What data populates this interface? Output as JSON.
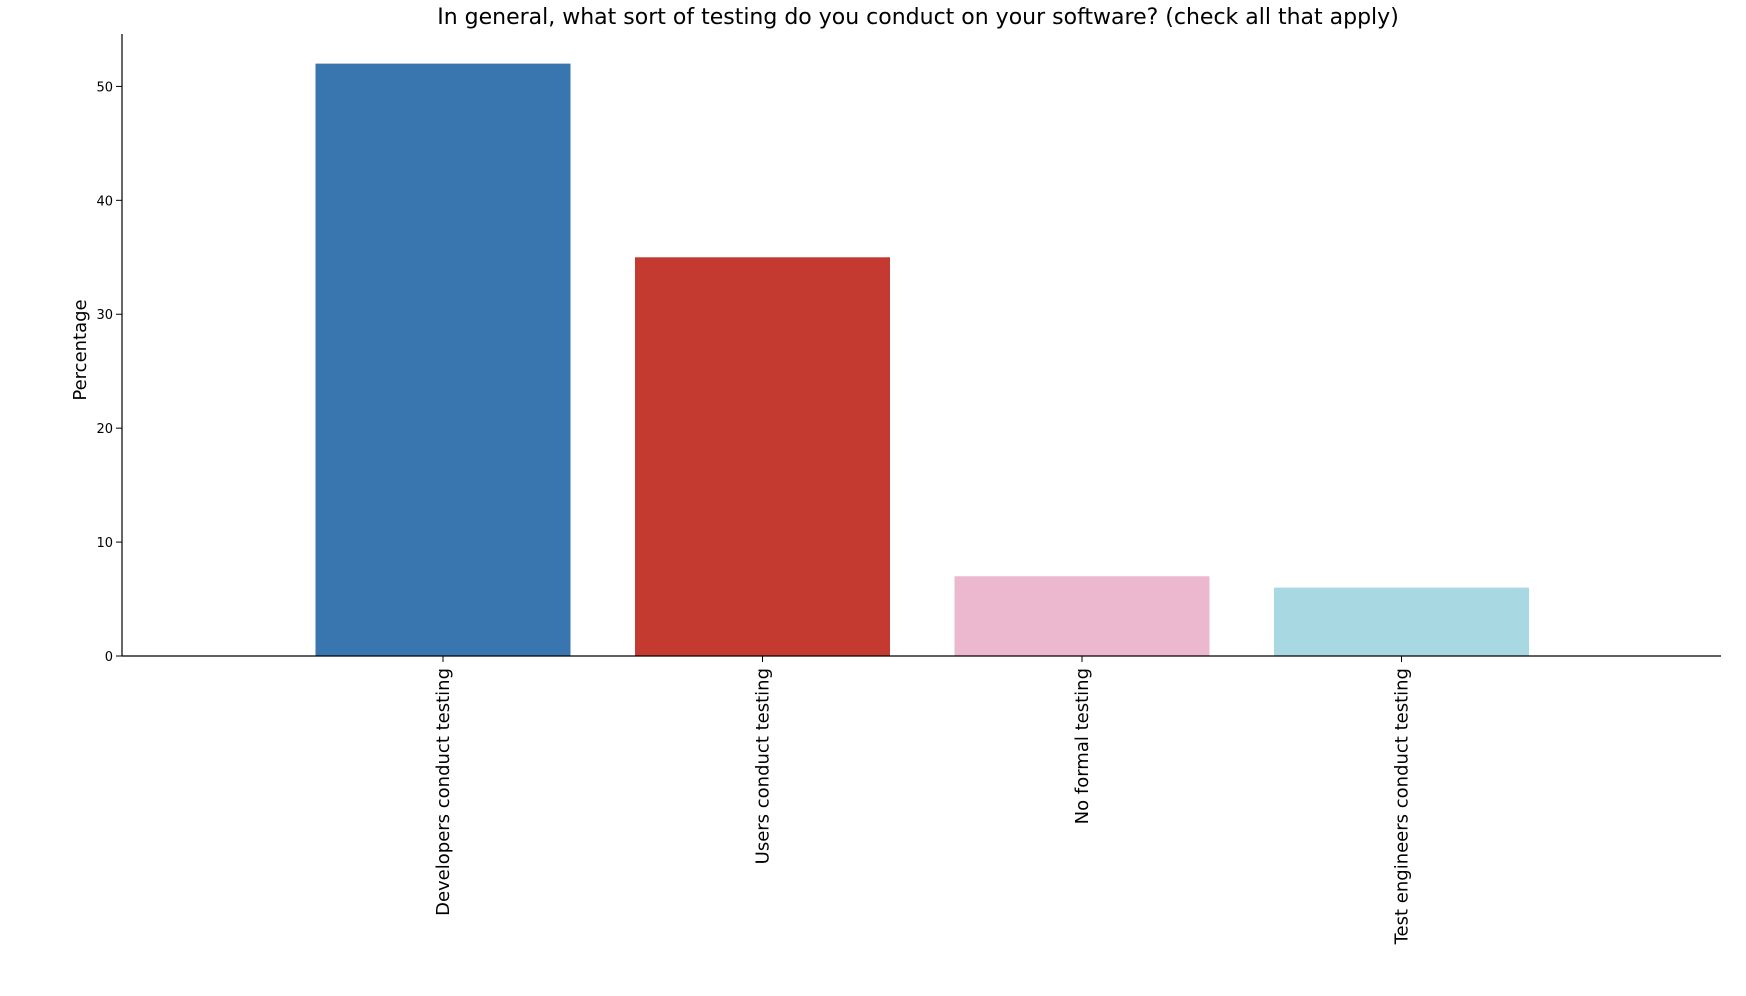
{
  "chart_data": {
    "type": "bar",
    "title": "In general, what sort of testing do you conduct on your software? (check all that apply)",
    "xlabel": "",
    "ylabel": "Percentage",
    "categories": [
      "Developers conduct testing",
      "Users conduct testing",
      "No formal testing",
      "Test engineers conduct testing"
    ],
    "values": [
      52,
      35,
      7,
      6
    ],
    "colors": [
      "#3976af",
      "#c43a31",
      "#ecb8d0",
      "#a8d8e2"
    ],
    "ylim": [
      0,
      54.6
    ],
    "yticks": [
      0,
      10,
      20,
      30,
      40,
      50
    ],
    "grid": false,
    "legend": "none"
  }
}
